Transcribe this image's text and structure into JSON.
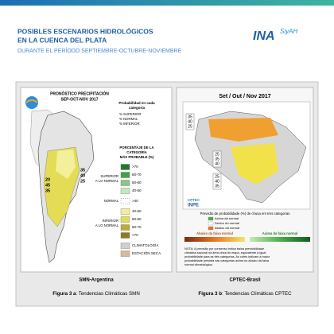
{
  "header": {
    "title_lines": [
      "POSIBLES ESCENARIOS HIDROLÓGICOS",
      "EN LA CUENCA DEL PLATA"
    ],
    "subtitle": "DURANTE EL PERÍODO SEPTIEMBRE-OCTUBRE-NOVIEMBRE",
    "logo": "INA",
    "logo_sub": "SiyAH"
  },
  "figures": [
    {
      "title_lines": [
        "PRONÓSTICO PRECIPITACIÓN",
        "SEP-OCT-NOV 2017"
      ],
      "legend_title_lines": [
        "Probabilidad en cada",
        "categoría"
      ],
      "legend_keys": [
        "% SUPERIOR",
        "% NORMAL",
        "% INFERIOR"
      ],
      "scale_title_lines": [
        "PORCENTAJE DE LA",
        "CATEGORÍA",
        "MÁS PROBABLE (%)"
      ],
      "groups": [
        {
          "label_lines": [
            "SUPERIOR",
            "A LO NORMAL"
          ],
          "items": [
            {
              "label": ">70",
              "color": "#1f7a2a"
            },
            {
              "label": "60-70",
              "color": "#3fa346"
            },
            {
              "label": "50-60",
              "color": "#84c97f"
            },
            {
              "label": "40-50",
              "color": "#c4e8be"
            }
          ]
        },
        {
          "label_lines": [
            "NORMAL"
          ],
          "items": [
            {
              "label": ">40",
              "color": "#ffffff"
            }
          ]
        },
        {
          "label_lines": [
            "INFERIOR",
            "A LO NORMAL"
          ],
          "items": [
            {
              "label": "40-50",
              "color": "#f3ef9b"
            },
            {
              "label": "50-60",
              "color": "#e4dc55"
            },
            {
              "label": "60-70",
              "color": "#b9ad33"
            },
            {
              "label": ">70",
              "color": "#8c7b22"
            }
          ]
        },
        {
          "label_lines": [],
          "items": [
            {
              "label": "CLIMATOLOGÍA",
              "color": "#cfcfcf"
            },
            {
              "label": "ESTACIÓN SECA",
              "color": "#d8b99a"
            }
          ]
        }
      ],
      "map_numbers": [
        [
          "20",
          "45",
          "35"
        ],
        [
          "35",
          "40",
          "25"
        ]
      ],
      "source": "SMN-Argentina",
      "caption_bold": "Figura 3 a",
      "caption": ": Tendencias Climáticas SMN"
    },
    {
      "title": "Set / Out / Nov 2017",
      "map_numbers": [
        [
          "35",
          "40",
          "25"
        ],
        [
          "25",
          "35",
          "40"
        ],
        [
          "25",
          "40",
          "35"
        ]
      ],
      "logos": [
        "CPTEC",
        "INPE"
      ],
      "legend_title": "Previsão de probabilidade (%) de chuva em tres categorias",
      "legend_keys": [
        "Acima da normal",
        "Dentro do normal",
        "Abaixo da normal"
      ],
      "bar_labels": [
        "Abaixo da faixa normal",
        "Acima da faixa normal"
      ],
      "note_lines": [
        "NOTA: A previsão por consenso indica baixa previsibilidade",
        "climática sazonal na área cinza do mapa, equivalente à igual",
        "probabilidade para as três categorias. As cores indicam a maior",
        "probabilidade prevista nas categorias acima ou abaixo da faixa",
        "normal climatológica."
      ],
      "source": "CPTEC-Brasil",
      "caption_bold": "Figura 3 b",
      "caption": ": Tendencias Climáticas CPTEC"
    }
  ]
}
